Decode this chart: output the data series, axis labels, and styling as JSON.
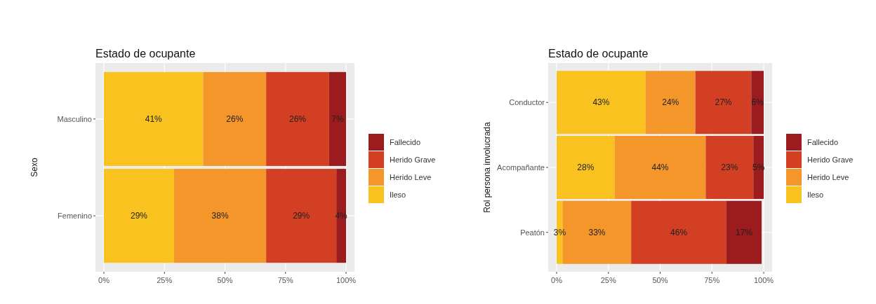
{
  "chart_data": [
    {
      "type": "bar",
      "title": "Estado de ocupante",
      "ylabel": "Sexo",
      "orientation": "horizontal",
      "stacked": true,
      "categories": [
        "Masculino",
        "Femenino"
      ],
      "series": [
        {
          "name": "Ileso",
          "color": "#f9c21f",
          "values": [
            41,
            29
          ],
          "value_labels": [
            "41%",
            "29%"
          ]
        },
        {
          "name": "Herido Leve",
          "color": "#f4962a",
          "values": [
            26,
            38
          ],
          "value_labels": [
            "26%",
            "38%"
          ]
        },
        {
          "name": "Herido Grave",
          "color": "#d23f22",
          "values": [
            26,
            29
          ],
          "value_labels": [
            "26%",
            "29%"
          ]
        },
        {
          "name": "Fallecido",
          "color": "#9b1b1e",
          "values": [
            7,
            4
          ],
          "value_labels": [
            "7%",
            "4%"
          ]
        }
      ],
      "xlim": [
        0,
        100
      ],
      "xticks": [
        {
          "value": 0,
          "label": "0%"
        },
        {
          "value": 25,
          "label": "25%"
        },
        {
          "value": 50,
          "label": "50%"
        },
        {
          "value": 75,
          "label": "75%"
        },
        {
          "value": 100,
          "label": "100%"
        }
      ],
      "grid": true,
      "legend": "right"
    },
    {
      "type": "bar",
      "title": "Estado de ocupante",
      "ylabel": "Rol persona involucrada",
      "orientation": "horizontal",
      "stacked": true,
      "categories": [
        "Conductor",
        "Acompañante",
        "Peatón"
      ],
      "series": [
        {
          "name": "Ileso",
          "color": "#f9c21f",
          "values": [
            43,
            28,
            3
          ],
          "value_labels": [
            "43%",
            "28%",
            "3%"
          ]
        },
        {
          "name": "Herido Leve",
          "color": "#f4962a",
          "values": [
            24,
            44,
            33
          ],
          "value_labels": [
            "24%",
            "44%",
            "33%"
          ]
        },
        {
          "name": "Herido Grave",
          "color": "#d23f22",
          "values": [
            27,
            23,
            46
          ],
          "value_labels": [
            "27%",
            "23%",
            "46%"
          ]
        },
        {
          "name": "Fallecido",
          "color": "#9b1b1e",
          "values": [
            6,
            5,
            17
          ],
          "value_labels": [
            "6%",
            "5%",
            "17%"
          ]
        }
      ],
      "xlim": [
        0,
        100
      ],
      "xticks": [
        {
          "value": 0,
          "label": "0%"
        },
        {
          "value": 25,
          "label": "25%"
        },
        {
          "value": 50,
          "label": "50%"
        },
        {
          "value": 75,
          "label": "75%"
        },
        {
          "value": 100,
          "label": "100%"
        }
      ],
      "grid": true,
      "legend": "right"
    }
  ]
}
